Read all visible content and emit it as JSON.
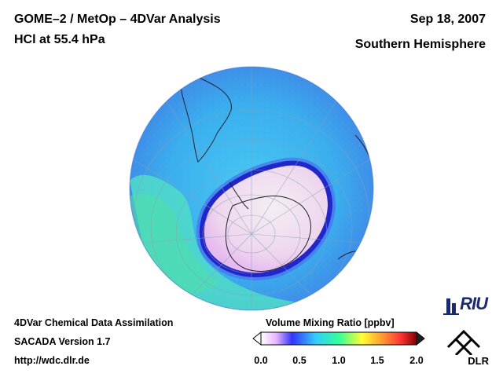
{
  "header": {
    "title_line1": "GOME–2 / MetOp – 4DVar Analysis",
    "title_line2": "HCl at 55.4 hPa",
    "date": "Sep 18, 2007",
    "region": "Southern Hemisphere"
  },
  "footer": {
    "line1": "4DVar Chemical Data Assimilation",
    "line2": "SACADA Version 1.7",
    "line3": "http://wdc.dlr.de"
  },
  "colorbar": {
    "title": "Volume Mixing Ratio [ppbv]",
    "ticks": [
      "0.0",
      "0.5",
      "1.0",
      "1.5",
      "2.0"
    ],
    "range": [
      0.0,
      2.0
    ],
    "colors": [
      "#ffffff",
      "#e6b3ff",
      "#3333ff",
      "#33ccff",
      "#33ff99",
      "#ffff33",
      "#ff9933",
      "#ff3333",
      "#800000"
    ]
  },
  "logos": {
    "riu": "RIU",
    "dlr": "DLR"
  },
  "map": {
    "projection": "orthographic, south pole view",
    "field_colors": {
      "background": "#3fb4ef",
      "equatorial_band": "#4fe0c8",
      "low_vortex": "#e8d8f0",
      "vortex_edge": "#2030d0"
    }
  }
}
